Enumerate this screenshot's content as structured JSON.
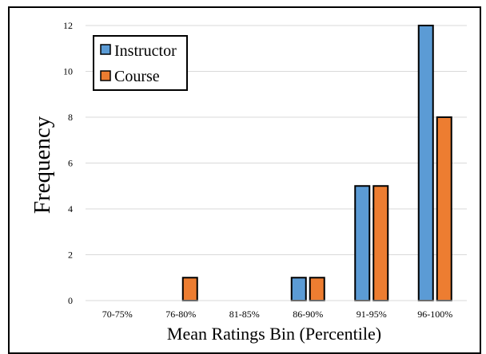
{
  "chart_data": {
    "type": "bar",
    "title": "",
    "xlabel": "Mean Ratings Bin (Percentile)",
    "ylabel": "Frequency",
    "categories": [
      "70-75%",
      "76-80%",
      "81-85%",
      "86-90%",
      "91-95%",
      "96-100%"
    ],
    "series": [
      {
        "name": "Instructor",
        "color": "#5b9bd5",
        "values": [
          0,
          0,
          0,
          1,
          5,
          12
        ]
      },
      {
        "name": "Course",
        "color": "#ed7d31",
        "values": [
          0,
          1,
          0,
          1,
          5,
          8
        ]
      }
    ],
    "ylim": [
      0,
      12
    ],
    "yticks": [
      0,
      2,
      4,
      6,
      8,
      10,
      12
    ],
    "grid": true,
    "legend_position": "top-left"
  }
}
